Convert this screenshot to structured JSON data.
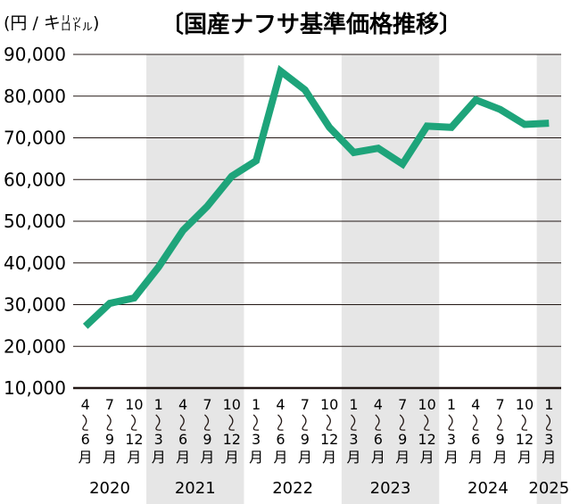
{
  "chart_data": {
    "type": "line",
    "title": "〔国産ナフサ基準価格推移〕",
    "ylabel": "(円 / キロリットル)",
    "ylim": [
      10000,
      90000
    ],
    "yticks": [
      10000,
      20000,
      30000,
      40000,
      50000,
      60000,
      70000,
      80000,
      90000
    ],
    "ytick_labels": [
      "10,000",
      "20,000",
      "30,000",
      "40,000",
      "50,000",
      "60,000",
      "70,000",
      "80,000",
      "90,000"
    ],
    "line_color": "#1ea47a",
    "band_color": "#e6e6e6",
    "grid": true,
    "years": [
      {
        "label": "2020",
        "quarters": 3
      },
      {
        "label": "2021",
        "quarters": 4
      },
      {
        "label": "2022",
        "quarters": 4
      },
      {
        "label": "2023",
        "quarters": 4
      },
      {
        "label": "2024",
        "quarters": 4
      },
      {
        "label": "2025",
        "quarters": 1
      }
    ],
    "categories": [
      {
        "start": "4",
        "end": "6",
        "suffix": "月"
      },
      {
        "start": "7",
        "end": "9",
        "suffix": "月"
      },
      {
        "start": "10",
        "end": "12",
        "suffix": "月"
      },
      {
        "start": "1",
        "end": "3",
        "suffix": "月"
      },
      {
        "start": "4",
        "end": "6",
        "suffix": "月"
      },
      {
        "start": "7",
        "end": "9",
        "suffix": "月"
      },
      {
        "start": "10",
        "end": "12",
        "suffix": "月"
      },
      {
        "start": "1",
        "end": "3",
        "suffix": "月"
      },
      {
        "start": "4",
        "end": "6",
        "suffix": "月"
      },
      {
        "start": "7",
        "end": "9",
        "suffix": "月"
      },
      {
        "start": "10",
        "end": "12",
        "suffix": "月"
      },
      {
        "start": "1",
        "end": "3",
        "suffix": "月"
      },
      {
        "start": "4",
        "end": "6",
        "suffix": "月"
      },
      {
        "start": "7",
        "end": "9",
        "suffix": "月"
      },
      {
        "start": "10",
        "end": "12",
        "suffix": "月"
      },
      {
        "start": "1",
        "end": "3",
        "suffix": "月"
      },
      {
        "start": "4",
        "end": "6",
        "suffix": "月"
      },
      {
        "start": "7",
        "end": "9",
        "suffix": "月"
      },
      {
        "start": "10",
        "end": "12",
        "suffix": "月"
      },
      {
        "start": "1",
        "end": "3",
        "suffix": "月"
      }
    ],
    "series": [
      {
        "values": [
          24800,
          30300,
          31600,
          39000,
          47800,
          53600,
          60800,
          64500,
          86000,
          81500,
          72500,
          66500,
          67500,
          63700,
          72800,
          72500,
          79100,
          76800,
          73200,
          73500
        ]
      }
    ]
  }
}
